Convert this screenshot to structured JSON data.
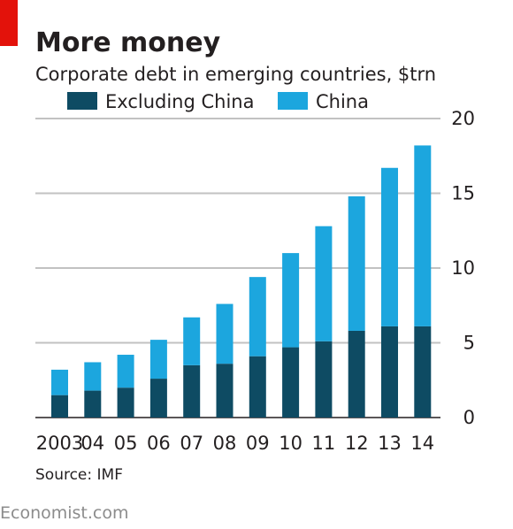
{
  "colors": {
    "accent_red": "#e3120b",
    "excluding_china": "#0e4b63",
    "china": "#1ca6de",
    "gridline": "#c2c2c2",
    "text": "#231f20",
    "brand": "#8c8c8c"
  },
  "title": "More money",
  "subtitle": "Corporate debt in emerging countries, $trn",
  "source": "Source: IMF",
  "brand": "Economist.com",
  "chart_data": {
    "type": "bar",
    "stacked": true,
    "categories": [
      "2003",
      "04",
      "05",
      "06",
      "07",
      "08",
      "09",
      "10",
      "11",
      "12",
      "13",
      "14"
    ],
    "series": [
      {
        "name": "Excluding China",
        "color": "#0e4b63",
        "values": [
          1.5,
          1.8,
          2.0,
          2.6,
          3.5,
          3.6,
          4.1,
          4.7,
          5.1,
          5.8,
          6.1,
          6.1
        ]
      },
      {
        "name": "China",
        "color": "#1ca6de",
        "values": [
          1.7,
          1.9,
          2.2,
          2.6,
          3.2,
          4.0,
          5.3,
          6.3,
          7.7,
          9.0,
          10.6,
          12.1
        ]
      }
    ],
    "ylim": [
      0,
      20
    ],
    "yticks": [
      "0",
      "5",
      "10",
      "15",
      "20"
    ],
    "ytick_values": [
      0,
      5,
      10,
      15,
      20
    ],
    "y_axis_position": "right",
    "grid": true,
    "legend_position": "top-left"
  }
}
